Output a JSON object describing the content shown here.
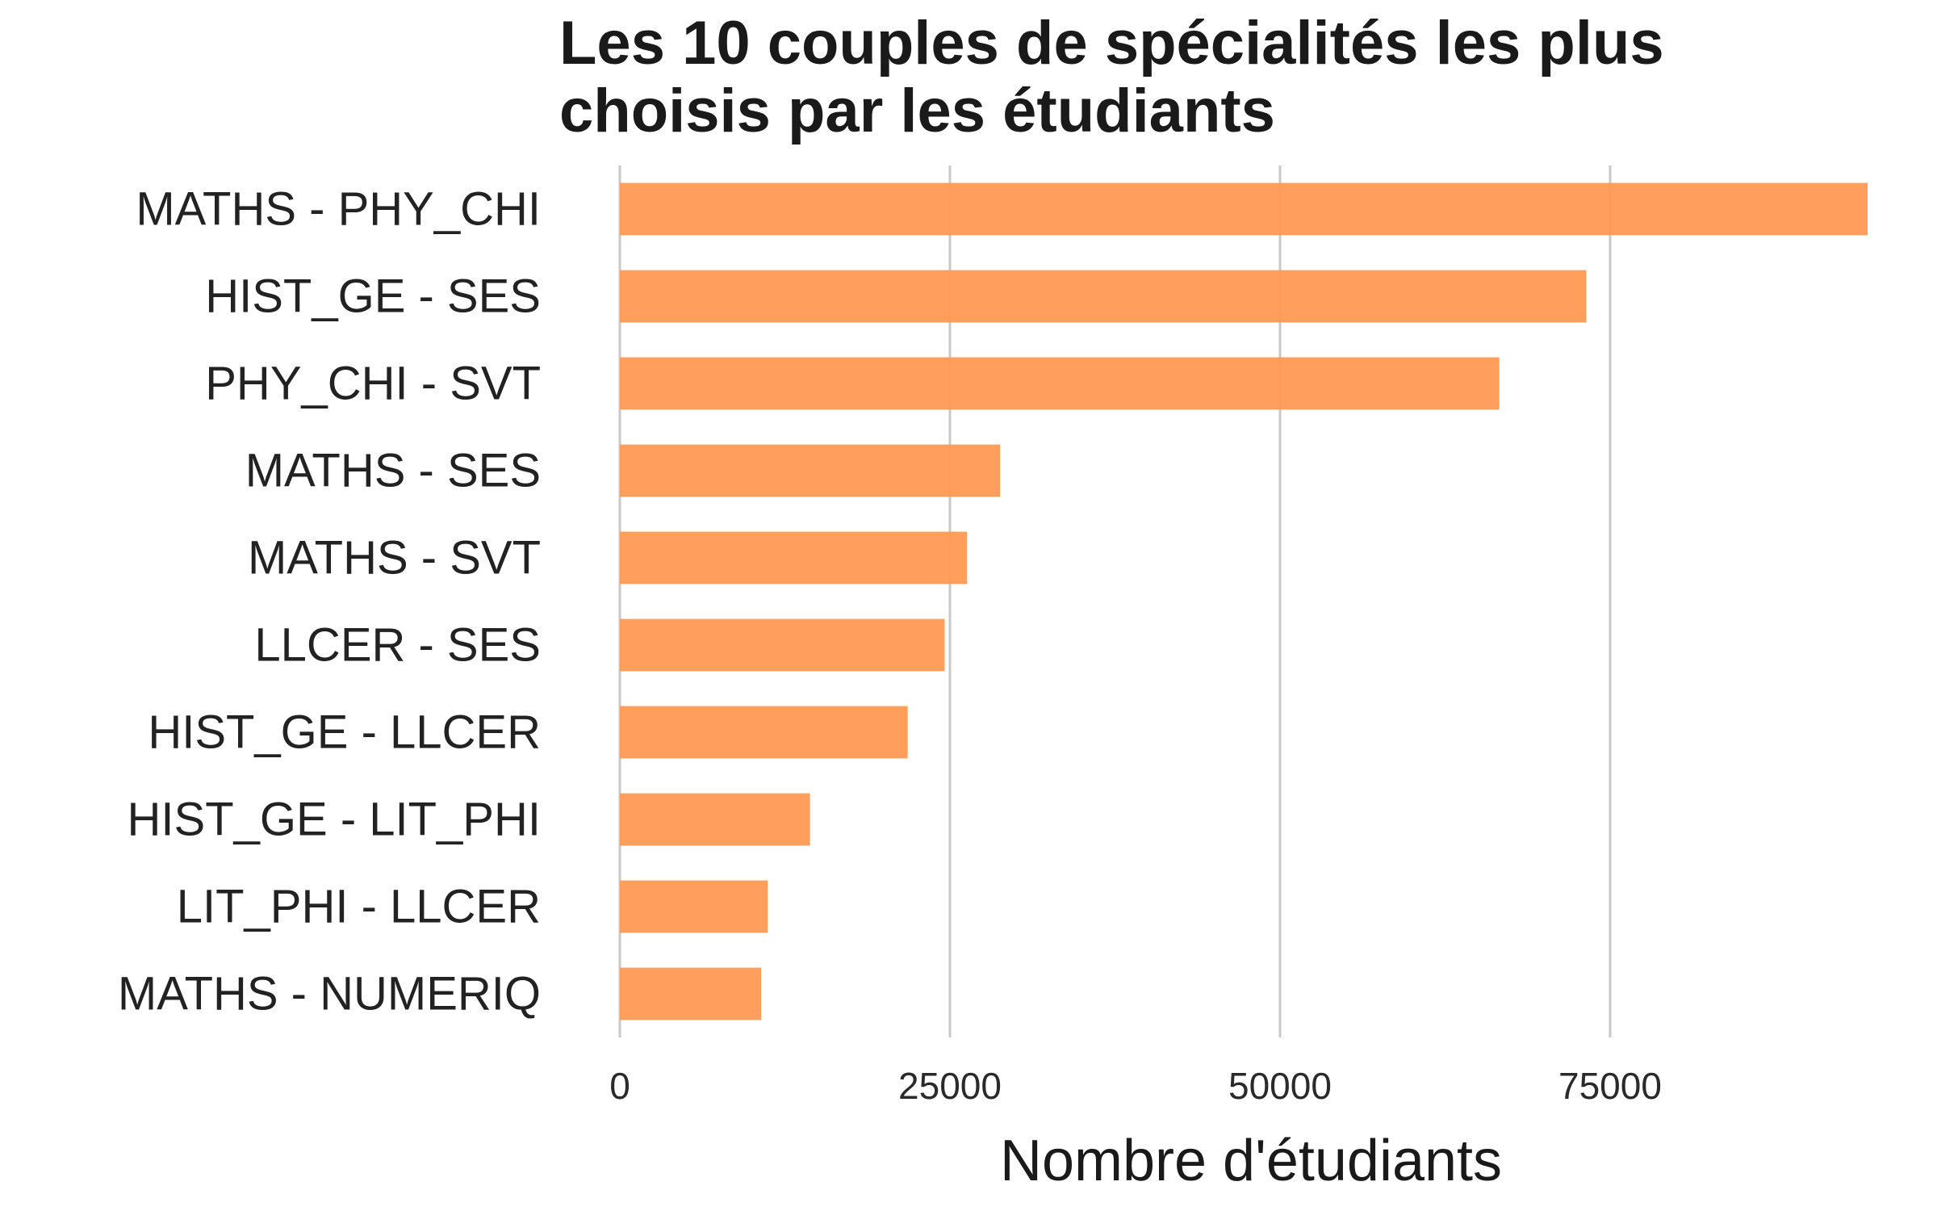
{
  "chart_data": {
    "type": "bar",
    "orientation": "horizontal",
    "title": "Les 10 couples de spécialités les plus choisis par les étudiants",
    "xlabel": "Nombre d'étudiants",
    "ylabel": "",
    "categories": [
      "MATHS - PHY_CHI",
      "HIST_GE - SES",
      "PHY_CHI - SVT",
      "MATHS - SES",
      "MATHS - SVT",
      "LLCER - SES",
      "HIST_GE - LLCER",
      "HIST_GE - LIT_PHI",
      "LIT_PHI - LLCER",
      "MATHS - NUMERIQ"
    ],
    "values": [
      94500,
      73200,
      66600,
      28800,
      26300,
      24600,
      21800,
      14400,
      11200,
      10700
    ],
    "xlim": [
      0,
      94500
    ],
    "xticks": [
      "0",
      "25000",
      "50000",
      "75000"
    ],
    "xtick_values": [
      0,
      25000,
      50000,
      75000
    ],
    "grid": "vertical major",
    "legend": "none",
    "colors": {
      "bar": "#ff9a52",
      "grid": "#c8c8c8",
      "text": "#222222"
    }
  }
}
